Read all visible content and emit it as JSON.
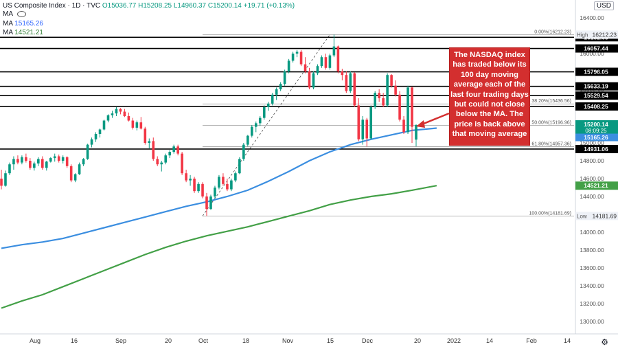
{
  "header": {
    "title": "US Composite Index · 1D · TVC",
    "ohlc": "O15036.77 H15208.25 L14960.37 C15200.14 +19.71 (+0.13%)",
    "ma_label": "MA",
    "ma1_value": "",
    "ma2_value": "15165.26",
    "ma3_value": "14521.21",
    "currency": "USD"
  },
  "annotation": "The NASDAQ index has traded below its 100 day moving average each of the last four trading days but could not close below the MA. The price is back above that moving average",
  "colors": {
    "up": "#089981",
    "down": "#f23645",
    "ma100": "#3b8ee0",
    "ma200": "#43a047",
    "annotation": "#d32f2f",
    "axis_text": "#131722"
  },
  "icons": {
    "settings": "gear-icon",
    "visibility": "eye-icon"
  },
  "chart_data": {
    "type": "candlestick",
    "y_range": [
      12900,
      16500
    ],
    "y_ticks": [
      13000,
      13200,
      13400,
      13600,
      13800,
      14000,
      14200,
      14400,
      14600,
      14800,
      15000,
      15200,
      15400,
      15600,
      15800,
      16000,
      16200,
      16400
    ],
    "y_tick_labels": [
      "13000.00",
      "13200.00",
      "13400.00",
      "13600.00",
      "13800.00",
      "14000.00",
      "14200.00",
      "14400.00",
      "14600.00",
      "14800.00",
      "15000.00",
      "15200.00",
      "15400.00",
      "15600.00",
      "15800.00",
      "16000.00",
      "16200.00",
      "16400.00"
    ],
    "x_tick_labels": [
      "Aug",
      "16",
      "Sep",
      "20",
      "Oct",
      "18",
      "Nov",
      "15",
      "Dec",
      "20",
      "2022",
      "14",
      "Feb",
      "14"
    ],
    "horizontal_levels": [
      {
        "value": 16182.63,
        "label": "16182.63"
      },
      {
        "value": 16057.44,
        "label": "16057.44"
      },
      {
        "value": 15796.05,
        "label": "15796.05"
      },
      {
        "value": 15633.19,
        "label": "15633.19"
      },
      {
        "value": 15529.54,
        "label": "15529.54"
      },
      {
        "value": 15408.25,
        "label": "15408.25"
      },
      {
        "value": 14931.06,
        "label": "14931.06"
      }
    ],
    "high_marker": {
      "label": "High",
      "value": "16212.23"
    },
    "low_marker": {
      "label": "Low",
      "value": "14181.69"
    },
    "price_tags": {
      "last_price": "15200.14",
      "countdown": "08:09:25",
      "ma100": "15165.26",
      "ma200": "14521.21"
    },
    "fibonacci": [
      {
        "label": "0.00%(16212.23)",
        "value": 16212.23
      },
      {
        "label": "38.20%(15436.56)",
        "value": 15436.56
      },
      {
        "label": "50.00%(15196.96)",
        "value": 15196.96
      },
      {
        "label": "61.80%(14957.36)",
        "value": 14957.36
      },
      {
        "label": "100.00%(14181.69)",
        "value": 14181.69
      }
    ],
    "candles": [
      {
        "o": 14600,
        "h": 14700,
        "l": 14480,
        "c": 14520
      },
      {
        "o": 14520,
        "h": 14690,
        "l": 14510,
        "c": 14660
      },
      {
        "o": 14660,
        "h": 14780,
        "l": 14640,
        "c": 14760
      },
      {
        "o": 14760,
        "h": 14850,
        "l": 14700,
        "c": 14820
      },
      {
        "o": 14820,
        "h": 14860,
        "l": 14760,
        "c": 14780
      },
      {
        "o": 14780,
        "h": 14860,
        "l": 14760,
        "c": 14840
      },
      {
        "o": 14840,
        "h": 14880,
        "l": 14780,
        "c": 14800
      },
      {
        "o": 14800,
        "h": 14830,
        "l": 14700,
        "c": 14720
      },
      {
        "o": 14720,
        "h": 14790,
        "l": 14690,
        "c": 14770
      },
      {
        "o": 14770,
        "h": 14840,
        "l": 14740,
        "c": 14820
      },
      {
        "o": 14820,
        "h": 14850,
        "l": 14700,
        "c": 14720
      },
      {
        "o": 14720,
        "h": 14800,
        "l": 14690,
        "c": 14790
      },
      {
        "o": 14790,
        "h": 14840,
        "l": 14780,
        "c": 14830
      },
      {
        "o": 14830,
        "h": 14880,
        "l": 14790,
        "c": 14850
      },
      {
        "o": 14850,
        "h": 14870,
        "l": 14780,
        "c": 14800
      },
      {
        "o": 14800,
        "h": 14860,
        "l": 14770,
        "c": 14840
      },
      {
        "o": 14840,
        "h": 14850,
        "l": 14720,
        "c": 14740
      },
      {
        "o": 14740,
        "h": 14760,
        "l": 14560,
        "c": 14580
      },
      {
        "o": 14580,
        "h": 14660,
        "l": 14560,
        "c": 14650
      },
      {
        "o": 14650,
        "h": 14780,
        "l": 14640,
        "c": 14760
      },
      {
        "o": 14760,
        "h": 14830,
        "l": 14740,
        "c": 14820
      },
      {
        "o": 14820,
        "h": 14990,
        "l": 14810,
        "c": 14980
      },
      {
        "o": 14980,
        "h": 15060,
        "l": 14950,
        "c": 15040
      },
      {
        "o": 15040,
        "h": 15120,
        "l": 15010,
        "c": 15100
      },
      {
        "o": 15100,
        "h": 15160,
        "l": 15060,
        "c": 15150
      },
      {
        "o": 15150,
        "h": 15260,
        "l": 15140,
        "c": 15250
      },
      {
        "o": 15250,
        "h": 15320,
        "l": 15230,
        "c": 15310
      },
      {
        "o": 15310,
        "h": 15360,
        "l": 15280,
        "c": 15330
      },
      {
        "o": 15330,
        "h": 15400,
        "l": 15300,
        "c": 15380
      },
      {
        "o": 15380,
        "h": 15390,
        "l": 15320,
        "c": 15350
      },
      {
        "o": 15350,
        "h": 15380,
        "l": 15290,
        "c": 15300
      },
      {
        "o": 15300,
        "h": 15340,
        "l": 15240,
        "c": 15250
      },
      {
        "o": 15250,
        "h": 15280,
        "l": 15150,
        "c": 15170
      },
      {
        "o": 15170,
        "h": 15250,
        "l": 15140,
        "c": 15230
      },
      {
        "o": 15230,
        "h": 15290,
        "l": 15150,
        "c": 15160
      },
      {
        "o": 15160,
        "h": 15180,
        "l": 14980,
        "c": 15000
      },
      {
        "o": 15000,
        "h": 15050,
        "l": 14940,
        "c": 15020
      },
      {
        "o": 15020,
        "h": 15060,
        "l": 14800,
        "c": 14820
      },
      {
        "o": 14820,
        "h": 14850,
        "l": 14740,
        "c": 14760
      },
      {
        "o": 14760,
        "h": 14800,
        "l": 14680,
        "c": 14780
      },
      {
        "o": 14780,
        "h": 14880,
        "l": 14760,
        "c": 14860
      },
      {
        "o": 14860,
        "h": 14920,
        "l": 14830,
        "c": 14900
      },
      {
        "o": 14900,
        "h": 14980,
        "l": 14880,
        "c": 14960
      },
      {
        "o": 14960,
        "h": 14980,
        "l": 14860,
        "c": 14880
      },
      {
        "o": 14880,
        "h": 14900,
        "l": 14640,
        "c": 14660
      },
      {
        "o": 14660,
        "h": 14700,
        "l": 14560,
        "c": 14580
      },
      {
        "o": 14580,
        "h": 14640,
        "l": 14520,
        "c": 14600
      },
      {
        "o": 14600,
        "h": 14620,
        "l": 14440,
        "c": 14460
      },
      {
        "o": 14460,
        "h": 14560,
        "l": 14440,
        "c": 14540
      },
      {
        "o": 14540,
        "h": 14560,
        "l": 14380,
        "c": 14400
      },
      {
        "o": 14400,
        "h": 14440,
        "l": 14182,
        "c": 14260
      },
      {
        "o": 14260,
        "h": 14420,
        "l": 14250,
        "c": 14400
      },
      {
        "o": 14400,
        "h": 14520,
        "l": 14380,
        "c": 14500
      },
      {
        "o": 14500,
        "h": 14640,
        "l": 14480,
        "c": 14620
      },
      {
        "o": 14620,
        "h": 14660,
        "l": 14520,
        "c": 14540
      },
      {
        "o": 14540,
        "h": 14600,
        "l": 14460,
        "c": 14480
      },
      {
        "o": 14480,
        "h": 14600,
        "l": 14460,
        "c": 14580
      },
      {
        "o": 14580,
        "h": 14680,
        "l": 14560,
        "c": 14660
      },
      {
        "o": 14660,
        "h": 14840,
        "l": 14650,
        "c": 14820
      },
      {
        "o": 14820,
        "h": 15000,
        "l": 14800,
        "c": 14980
      },
      {
        "o": 14980,
        "h": 15090,
        "l": 14960,
        "c": 15080
      },
      {
        "o": 15080,
        "h": 15200,
        "l": 15060,
        "c": 15180
      },
      {
        "o": 15180,
        "h": 15240,
        "l": 15120,
        "c": 15220
      },
      {
        "o": 15220,
        "h": 15300,
        "l": 15190,
        "c": 15280
      },
      {
        "o": 15280,
        "h": 15420,
        "l": 15260,
        "c": 15400
      },
      {
        "o": 15400,
        "h": 15460,
        "l": 15360,
        "c": 15440
      },
      {
        "o": 15440,
        "h": 15560,
        "l": 15420,
        "c": 15540
      },
      {
        "o": 15540,
        "h": 15620,
        "l": 15480,
        "c": 15600
      },
      {
        "o": 15600,
        "h": 15680,
        "l": 15580,
        "c": 15660
      },
      {
        "o": 15660,
        "h": 15820,
        "l": 15640,
        "c": 15800
      },
      {
        "o": 15800,
        "h": 15940,
        "l": 15780,
        "c": 15920
      },
      {
        "o": 15920,
        "h": 16020,
        "l": 15900,
        "c": 16000
      },
      {
        "o": 16000,
        "h": 16040,
        "l": 15960,
        "c": 16020
      },
      {
        "o": 16020,
        "h": 16040,
        "l": 15860,
        "c": 15880
      },
      {
        "o": 15880,
        "h": 15960,
        "l": 15780,
        "c": 15800
      },
      {
        "o": 15800,
        "h": 15840,
        "l": 15600,
        "c": 15620
      },
      {
        "o": 15620,
        "h": 15800,
        "l": 15600,
        "c": 15780
      },
      {
        "o": 15780,
        "h": 15880,
        "l": 15760,
        "c": 15860
      },
      {
        "o": 15860,
        "h": 15980,
        "l": 15840,
        "c": 15960
      },
      {
        "o": 15960,
        "h": 16000,
        "l": 15820,
        "c": 15840
      },
      {
        "o": 15840,
        "h": 16000,
        "l": 15820,
        "c": 15980
      },
      {
        "o": 15980,
        "h": 16212,
        "l": 15960,
        "c": 16080
      },
      {
        "o": 16080,
        "h": 16090,
        "l": 15780,
        "c": 15800
      },
      {
        "o": 15800,
        "h": 15830,
        "l": 15700,
        "c": 15760
      },
      {
        "o": 15760,
        "h": 15800,
        "l": 15560,
        "c": 15580
      },
      {
        "o": 15580,
        "h": 15800,
        "l": 15560,
        "c": 15780
      },
      {
        "o": 15780,
        "h": 15790,
        "l": 15400,
        "c": 15420
      },
      {
        "o": 15420,
        "h": 15500,
        "l": 15020,
        "c": 15040
      },
      {
        "o": 15040,
        "h": 15300,
        "l": 14980,
        "c": 15260
      },
      {
        "o": 15260,
        "h": 15280,
        "l": 14960,
        "c": 15050
      },
      {
        "o": 15050,
        "h": 15420,
        "l": 15040,
        "c": 15400
      },
      {
        "o": 15400,
        "h": 15580,
        "l": 15380,
        "c": 15560
      },
      {
        "o": 15560,
        "h": 15600,
        "l": 15460,
        "c": 15500
      },
      {
        "o": 15500,
        "h": 15560,
        "l": 15400,
        "c": 15420
      },
      {
        "o": 15420,
        "h": 15780,
        "l": 15400,
        "c": 15760
      },
      {
        "o": 15760,
        "h": 15770,
        "l": 15620,
        "c": 15640
      },
      {
        "o": 15640,
        "h": 15700,
        "l": 15520,
        "c": 15540
      },
      {
        "o": 15540,
        "h": 15580,
        "l": 15240,
        "c": 15260
      },
      {
        "o": 15260,
        "h": 15300,
        "l": 15100,
        "c": 15120
      },
      {
        "o": 15120,
        "h": 15640,
        "l": 15100,
        "c": 15620
      },
      {
        "o": 15620,
        "h": 15630,
        "l": 15000,
        "c": 15180
      },
      {
        "o": 15036.77,
        "h": 15208.25,
        "l": 14960.37,
        "c": 15200.14
      }
    ],
    "series": [
      {
        "name": "MA",
        "value": "15165.26",
        "values": [
          {
            "i": 0,
            "v": 13820
          },
          {
            "i": 5,
            "v": 13860
          },
          {
            "i": 10,
            "v": 13890
          },
          {
            "i": 15,
            "v": 13930
          },
          {
            "i": 20,
            "v": 13990
          },
          {
            "i": 25,
            "v": 14050
          },
          {
            "i": 30,
            "v": 14110
          },
          {
            "i": 35,
            "v": 14170
          },
          {
            "i": 40,
            "v": 14230
          },
          {
            "i": 45,
            "v": 14290
          },
          {
            "i": 50,
            "v": 14340
          },
          {
            "i": 55,
            "v": 14400
          },
          {
            "i": 60,
            "v": 14470
          },
          {
            "i": 65,
            "v": 14570
          },
          {
            "i": 70,
            "v": 14680
          },
          {
            "i": 75,
            "v": 14800
          },
          {
            "i": 80,
            "v": 14900
          },
          {
            "i": 85,
            "v": 14980
          },
          {
            "i": 90,
            "v": 15040
          },
          {
            "i": 95,
            "v": 15090
          },
          {
            "i": 100,
            "v": 15140
          },
          {
            "i": 106,
            "v": 15165.26
          }
        ]
      },
      {
        "name": "MA",
        "value": "14521.21",
        "values": [
          {
            "i": 0,
            "v": 13150
          },
          {
            "i": 5,
            "v": 13230
          },
          {
            "i": 10,
            "v": 13300
          },
          {
            "i": 15,
            "v": 13390
          },
          {
            "i": 20,
            "v": 13480
          },
          {
            "i": 25,
            "v": 13570
          },
          {
            "i": 30,
            "v": 13660
          },
          {
            "i": 35,
            "v": 13750
          },
          {
            "i": 40,
            "v": 13830
          },
          {
            "i": 45,
            "v": 13900
          },
          {
            "i": 50,
            "v": 13960
          },
          {
            "i": 55,
            "v": 14010
          },
          {
            "i": 60,
            "v": 14060
          },
          {
            "i": 65,
            "v": 14120
          },
          {
            "i": 70,
            "v": 14180
          },
          {
            "i": 75,
            "v": 14240
          },
          {
            "i": 80,
            "v": 14310
          },
          {
            "i": 85,
            "v": 14360
          },
          {
            "i": 90,
            "v": 14400
          },
          {
            "i": 95,
            "v": 14430
          },
          {
            "i": 100,
            "v": 14470
          },
          {
            "i": 106,
            "v": 14521.21
          }
        ]
      }
    ]
  }
}
